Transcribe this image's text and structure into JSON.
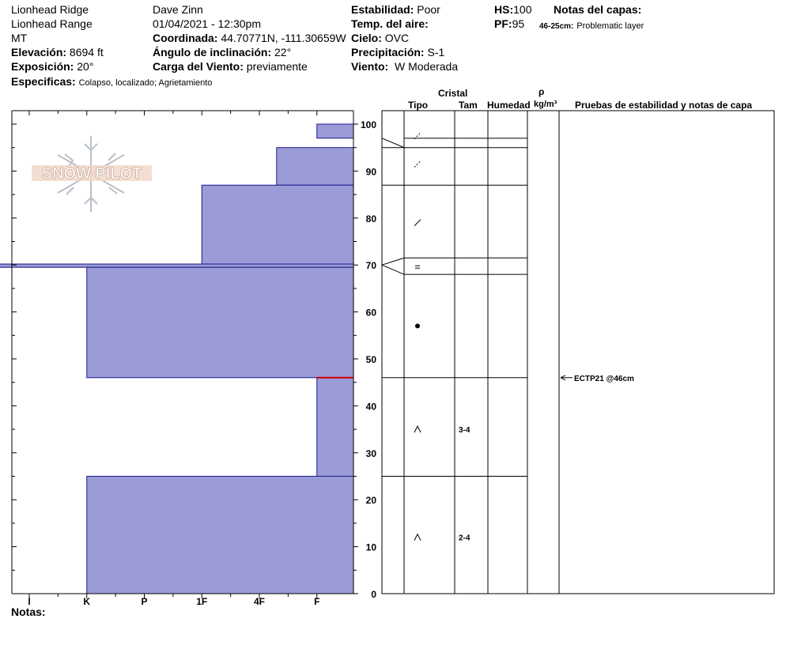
{
  "header": {
    "location": "Lionhead Ridge",
    "range": "Lionhead Range",
    "state": "MT",
    "observer": "Dave Zinn",
    "datetime": "01/04/2021 - 12:30pm",
    "elevation_label": "Elevación:",
    "elevation_value": "8694 ft",
    "exposure_label": "Exposición:",
    "exposure_value": "20°",
    "specifics_label": "Especificas:",
    "specifics_value": "Colapso, localizado;  Agrietamiento",
    "coord_label": "Coordinada:",
    "coord_value": "44.70771N, -111.30659W",
    "slope_label": "Ángulo de inclinación:",
    "slope_value": "22°",
    "wind_load_label": "Carga del Viento:",
    "wind_load_value": "previamente",
    "stability_label": "Estabilidad:",
    "stability_value": "Poor",
    "air_temp_label": "Temp. del aire:",
    "air_temp_value": "",
    "sky_label": "Cielo:",
    "sky_value": "OVC",
    "precip_label": "Precipitación:",
    "precip_value": "S-1",
    "wind_label": "Viento:",
    "wind_value": "W Moderada",
    "hs_label": "HS:",
    "hs_value": "100",
    "pf_label": "PF:",
    "pf_value": "95",
    "layer_notes_label": "Notas del capas:",
    "layer_note_depth": "46-25cm:",
    "layer_note_text": "Problematic layer"
  },
  "notes_label": "Notas:",
  "logo_text": "SNOW PILOT",
  "columns": {
    "crystal": "Cristal",
    "type": "Tipo",
    "size": "Tam",
    "moisture": "Humedad",
    "rho": "ρ",
    "density_unit": "kg/m³",
    "tests": "Pruebas de estabilidad y notas de capa"
  },
  "colors": {
    "hardness_fill": "#9B9BD7",
    "hardness_stroke": "#1a1a8c",
    "weak_layer": "#cc0000"
  },
  "chart_data": {
    "type": "bar",
    "title": "",
    "xlabel": "",
    "ylabel": "",
    "ylim": [
      0,
      100
    ],
    "y_ticks": [
      0,
      10,
      20,
      30,
      40,
      50,
      60,
      70,
      80,
      90,
      100
    ],
    "hardness_scale": [
      "I",
      "K",
      "P",
      "1F",
      "4F",
      "F"
    ],
    "hardness_profile": [
      {
        "bottom": 97,
        "top": 100,
        "hardness_index": 5.0
      },
      {
        "bottom": 87,
        "top": 95,
        "hardness_index": 4.3
      },
      {
        "bottom": 70,
        "top": 87,
        "hardness_index": 3.0
      },
      {
        "bottom": 69.5,
        "top": 70.2,
        "hardness_index": -0.9
      },
      {
        "bottom": 46,
        "top": 69.5,
        "hardness_index": 1.0
      },
      {
        "bottom": 25,
        "top": 46,
        "hardness_index": 5.0
      },
      {
        "bottom": 0,
        "top": 25,
        "hardness_index": 1.0
      }
    ],
    "layer_boundaries": [
      97,
      95,
      87,
      71.5,
      68,
      46,
      25
    ],
    "weak_layer_depth": 46,
    "crystal_layers": [
      {
        "height": 97.5,
        "symbol": "decomposing"
      },
      {
        "height": 91.5,
        "symbol": "decomposing"
      },
      {
        "height": 79,
        "symbol": "precip"
      },
      {
        "height": 69.5,
        "symbol": "="
      },
      {
        "height": 57,
        "symbol": "dot"
      },
      {
        "height": 35,
        "symbol": "^",
        "size": "3-4"
      },
      {
        "height": 12,
        "symbol": "^",
        "size": "2-4"
      }
    ],
    "tests": [
      {
        "height": 46,
        "label": "ECTP21 @46cm"
      }
    ]
  }
}
